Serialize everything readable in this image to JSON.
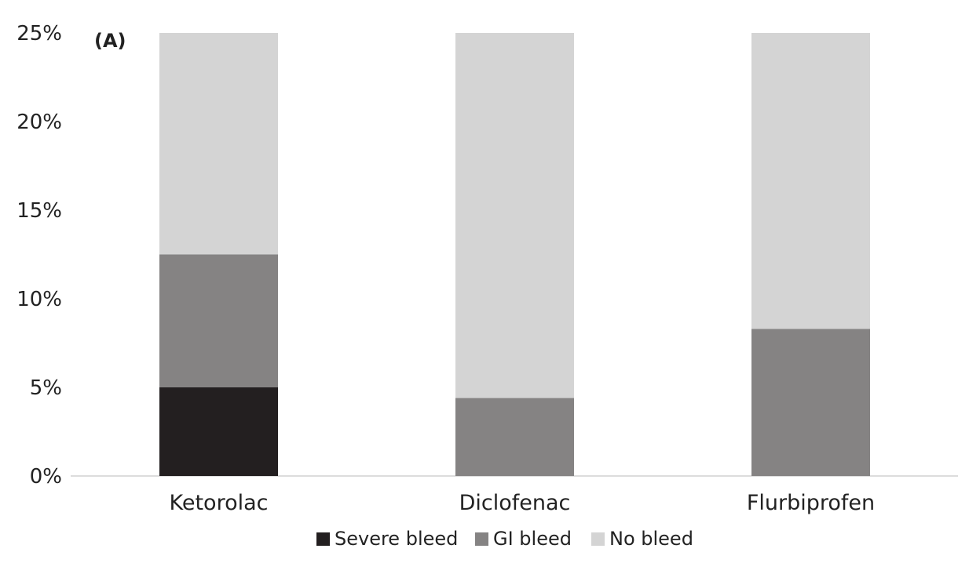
{
  "chart_data": {
    "type": "bar",
    "stacked": true,
    "panel_label": "(A)",
    "categories": [
      "Ketorolac",
      "Diclofenac",
      "Flurbiprofen"
    ],
    "series": [
      {
        "name": "Severe bleed",
        "color": "#231f20",
        "values": [
          5.0,
          0.0,
          0.0
        ]
      },
      {
        "name": "GI bleed",
        "color": "#858383",
        "values": [
          7.5,
          4.4,
          8.3
        ]
      },
      {
        "name": "No bleed",
        "color": "#d4d4d4",
        "values": [
          12.5,
          20.6,
          16.7
        ]
      }
    ],
    "ylim": [
      0,
      25
    ],
    "yticks": [
      0,
      5,
      10,
      15,
      20,
      25
    ],
    "ytick_labels": [
      "0%",
      "5%",
      "10%",
      "15%",
      "20%",
      "25%"
    ],
    "xlabel": "",
    "ylabel": "",
    "grid": false,
    "legend_position": "bottom"
  }
}
